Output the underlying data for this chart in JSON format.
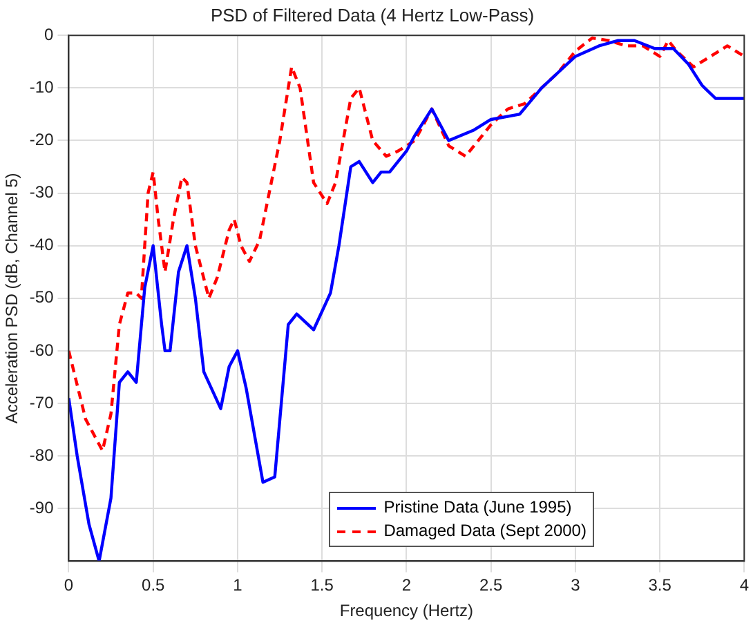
{
  "chart_data": {
    "type": "line",
    "title": "PSD of Filtered Data (4 Hertz Low-Pass)",
    "xlabel": "Frequency (Hertz)",
    "ylabel": "Acceleration PSD (dB, Channel 5)",
    "xlim": [
      0,
      4
    ],
    "xticks": [
      0,
      0.5,
      1,
      1.5,
      2,
      2.5,
      3,
      3.5,
      4
    ],
    "ylim": [
      -100,
      0
    ],
    "yticks": [
      -90,
      -80,
      -70,
      -60,
      -50,
      -40,
      -30,
      -20,
      -10,
      0
    ],
    "grid": true,
    "legend": "bottom",
    "marker": "none",
    "series": [
      {
        "name": "Pristine Data (June 1995)",
        "color": "#0000ff",
        "line_style": "solid",
        "x": [
          0,
          0.05,
          0.12,
          0.18,
          0.25,
          0.3,
          0.35,
          0.4,
          0.45,
          0.5,
          0.55,
          0.57,
          0.6,
          0.65,
          0.7,
          0.75,
          0.8,
          0.9,
          0.95,
          1.0,
          1.05,
          1.15,
          1.22,
          1.3,
          1.35,
          1.45,
          1.55,
          1.6,
          1.67,
          1.72,
          1.8,
          1.85,
          1.9,
          2.0,
          2.05,
          2.15,
          2.25,
          2.4,
          2.5,
          2.67,
          2.8,
          2.9,
          3.0,
          3.14,
          3.25,
          3.35,
          3.47,
          3.58,
          3.67,
          3.75,
          3.83,
          3.95,
          4.0
        ],
        "values": [
          -69,
          -80,
          -93,
          -100,
          -88,
          -66,
          -64,
          -66,
          -48,
          -40,
          -55,
          -60,
          -60,
          -45,
          -40,
          -50,
          -64,
          -71,
          -63,
          -60,
          -67,
          -85,
          -84,
          -55,
          -53,
          -56,
          -49,
          -40,
          -25,
          -24,
          -28,
          -26,
          -26,
          -22,
          -19,
          -14,
          -20,
          -18,
          -16,
          -15,
          -10,
          -7,
          -4,
          -2,
          -1,
          -1,
          -2.5,
          -2.5,
          -5.5,
          -9.5,
          -12,
          -12,
          -12
        ]
      },
      {
        "name": "Damaged Data (Sept 2000)",
        "color": "#ff0000",
        "line_style": "dashed",
        "x": [
          0,
          0.1,
          0.2,
          0.25,
          0.3,
          0.35,
          0.4,
          0.43,
          0.47,
          0.5,
          0.53,
          0.57,
          0.62,
          0.67,
          0.7,
          0.75,
          0.83,
          0.88,
          0.95,
          0.98,
          1.02,
          1.07,
          1.13,
          1.25,
          1.32,
          1.37,
          1.45,
          1.53,
          1.58,
          1.67,
          1.72,
          1.8,
          1.88,
          1.95,
          2.05,
          2.15,
          2.25,
          2.35,
          2.5,
          2.6,
          2.7,
          2.8,
          2.9,
          3.0,
          3.1,
          3.2,
          3.3,
          3.4,
          3.5,
          3.55,
          3.6,
          3.7,
          3.8,
          3.9,
          4.0
        ],
        "values": [
          -60,
          -73,
          -79,
          -72,
          -55,
          -49,
          -49,
          -50,
          -30,
          -26,
          -35,
          -45,
          -35,
          -27,
          -28,
          -40,
          -50,
          -46,
          -37,
          -35,
          -40,
          -43,
          -39,
          -20,
          -6,
          -10,
          -28,
          -32,
          -28,
          -12,
          -10,
          -20,
          -23,
          -22,
          -20,
          -14,
          -21,
          -23,
          -17,
          -14,
          -13,
          -10,
          -7,
          -3,
          -0.5,
          -1,
          -2,
          -2,
          -4,
          -1,
          -3,
          -6,
          -4,
          -2,
          -4
        ]
      }
    ]
  }
}
